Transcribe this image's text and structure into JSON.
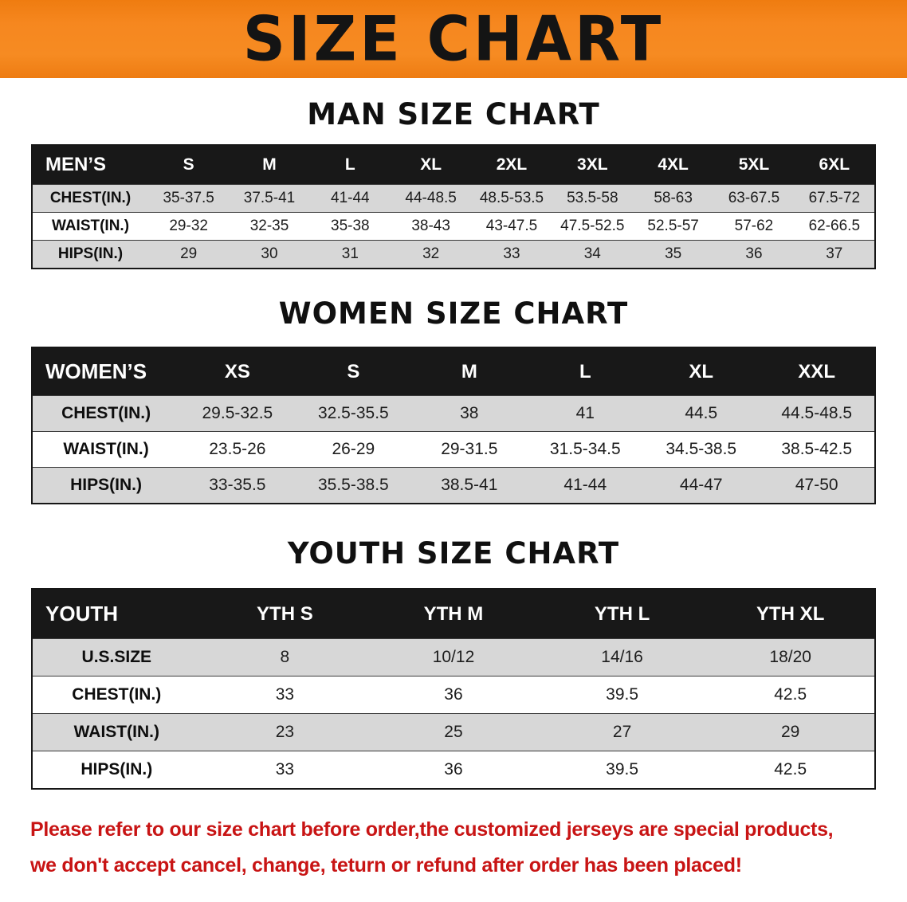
{
  "banner": {
    "title": "SIZE CHART"
  },
  "sections": [
    {
      "id": "men",
      "heading": "MAN SIZE CHART",
      "table": {
        "header": [
          "MEN’S",
          "S",
          "M",
          "L",
          "XL",
          "2XL",
          "3XL",
          "4XL",
          "5XL",
          "6XL"
        ],
        "rows": [
          [
            "CHEST(IN.)",
            "35-37.5",
            "37.5-41",
            "41-44",
            "44-48.5",
            "48.5-53.5",
            "53.5-58",
            "58-63",
            "63-67.5",
            "67.5-72"
          ],
          [
            "WAIST(IN.)",
            "29-32",
            "32-35",
            "35-38",
            "38-43",
            "43-47.5",
            "47.5-52.5",
            "52.5-57",
            "57-62",
            "62-66.5"
          ],
          [
            "HIPS(IN.)",
            "29",
            "30",
            "31",
            "32",
            "33",
            "34",
            "35",
            "36",
            "37"
          ]
        ]
      }
    },
    {
      "id": "women",
      "heading": "WOMEN SIZE CHART",
      "table": {
        "header": [
          "WOMEN’S",
          "XS",
          "S",
          "M",
          "L",
          "XL",
          "XXL"
        ],
        "rows": [
          [
            "CHEST(IN.)",
            "29.5-32.5",
            "32.5-35.5",
            "38",
            "41",
            "44.5",
            "44.5-48.5"
          ],
          [
            "WAIST(IN.)",
            "23.5-26",
            "26-29",
            "29-31.5",
            "31.5-34.5",
            "34.5-38.5",
            "38.5-42.5"
          ],
          [
            "HIPS(IN.)",
            "33-35.5",
            "35.5-38.5",
            "38.5-41",
            "41-44",
            "44-47",
            "47-50"
          ]
        ]
      }
    },
    {
      "id": "youth",
      "heading": "YOUTH SIZE CHART",
      "table": {
        "header": [
          "YOUTH",
          "YTH S",
          "YTH M",
          "YTH L",
          "YTH XL"
        ],
        "rows": [
          [
            "U.S.SIZE",
            "8",
            "10/12",
            "14/16",
            "18/20"
          ],
          [
            "CHEST(IN.)",
            "33",
            "36",
            "39.5",
            "42.5"
          ],
          [
            "WAIST(IN.)",
            "23",
            "25",
            "27",
            "29"
          ],
          [
            "HIPS(IN.)",
            "33",
            "36",
            "39.5",
            "42.5"
          ]
        ]
      }
    }
  ],
  "disclaimer": {
    "line1": "Please refer to our size chart before order,the customized jerseys are special products,",
    "line2": "we don't accept cancel, change, teturn or refund after order has been placed!"
  },
  "colors": {
    "banner_orange": "#F6871F",
    "header_black": "#181818",
    "row_gray": "#D7D7D7",
    "disclaimer_red": "#C81414"
  }
}
